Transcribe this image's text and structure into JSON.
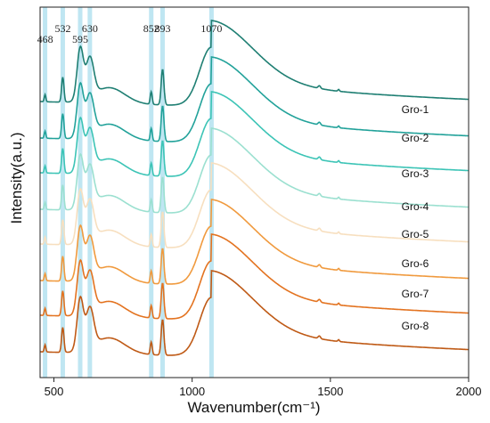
{
  "chart_data": {
    "type": "line",
    "title": "",
    "xlabel": "Wavenumber(cm⁻¹)",
    "ylabel": "Intensity(a.u.)",
    "xlim": [
      450,
      2000
    ],
    "x_ticks": [
      500,
      1000,
      1500,
      2000
    ],
    "y_ticks_shown": false,
    "grid": false,
    "peak_positions": [
      468,
      532,
      595,
      630,
      852,
      893,
      1070
    ],
    "peak_band_color": "#bfe6f2",
    "series": [
      {
        "name": "Gro-1",
        "color": "#1f7f73",
        "offset": 7
      },
      {
        "name": "Gro-2",
        "color": "#22a29a",
        "offset": 6
      },
      {
        "name": "Gro-3",
        "color": "#3cc4b6",
        "offset": 5
      },
      {
        "name": "Gro-4",
        "color": "#9be0d0",
        "offset": 4
      },
      {
        "name": "Gro-5",
        "color": "#f7dfbf",
        "offset": 3
      },
      {
        "name": "Gro-6",
        "color": "#f09a3e",
        "offset": 2
      },
      {
        "name": "Gro-7",
        "color": "#e37320",
        "offset": 1
      },
      {
        "name": "Gro-8",
        "color": "#bf5a16",
        "offset": 0
      }
    ]
  }
}
